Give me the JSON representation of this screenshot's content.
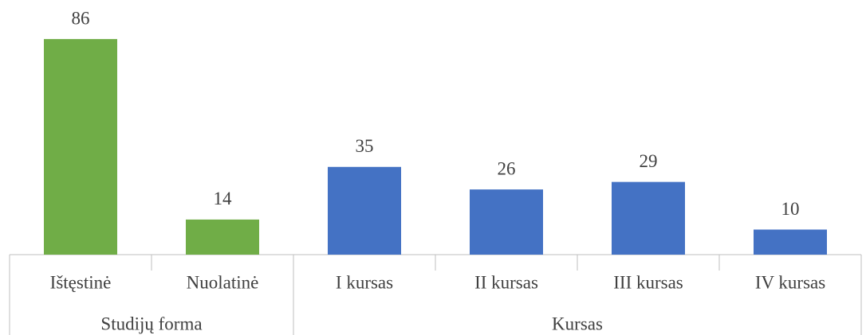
{
  "chart_data": {
    "type": "bar",
    "groups": [
      {
        "label": "Studijų forma",
        "color": "#70ad47",
        "categories": [
          "Ištęstinė",
          "Nuolatinė"
        ],
        "values": [
          86,
          14
        ]
      },
      {
        "label": "Kursas",
        "color": "#4472c4",
        "categories": [
          "I kursas",
          "II kursas",
          "III kursas",
          "IV kursas"
        ],
        "values": [
          35,
          26,
          29,
          10
        ]
      }
    ]
  }
}
